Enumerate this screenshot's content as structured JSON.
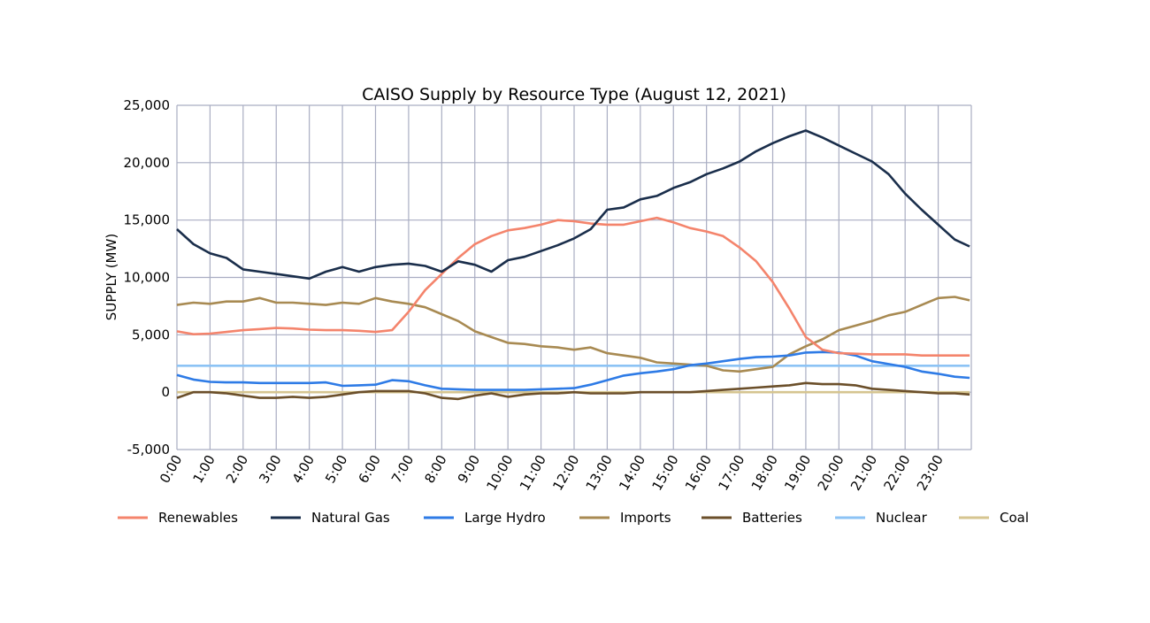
{
  "chart_data": {
    "type": "line",
    "title": "CAISO Supply by Resource Type (August 12, 2021)",
    "xlabel": "",
    "ylabel": "SUPPLY (MW)",
    "ylim": [
      -5000,
      25000
    ],
    "xlim": [
      0,
      24
    ],
    "yticks": [
      -5000,
      0,
      5000,
      10000,
      15000,
      20000,
      25000
    ],
    "ytick_labels": [
      "-5,000",
      "0",
      "5,000",
      "10,000",
      "15,000",
      "20,000",
      "25,000"
    ],
    "xticks": [
      0,
      1,
      2,
      3,
      4,
      5,
      6,
      7,
      8,
      9,
      10,
      11,
      12,
      13,
      14,
      15,
      16,
      17,
      18,
      19,
      20,
      21,
      22,
      23
    ],
    "xtick_labels": [
      "0:00",
      "1:00",
      "2:00",
      "3:00",
      "4:00",
      "5:00",
      "6:00",
      "7:00",
      "8:00",
      "9:00",
      "10:00",
      "11:00",
      "12:00",
      "13:00",
      "14:00",
      "15:00",
      "16:00",
      "17:00",
      "18:00",
      "19:00",
      "20:00",
      "21:00",
      "22:00",
      "23:00"
    ],
    "grid": true,
    "legend_position": "bottom",
    "x": [
      0,
      0.5,
      1,
      1.5,
      2,
      2.5,
      3,
      3.5,
      4,
      4.5,
      5,
      5.5,
      6,
      6.5,
      7,
      7.5,
      8,
      8.5,
      9,
      9.5,
      10,
      10.5,
      11,
      11.5,
      12,
      12.5,
      13,
      13.5,
      14,
      14.5,
      15,
      15.5,
      16,
      16.5,
      17,
      17.5,
      18,
      18.5,
      19,
      19.5,
      20,
      20.5,
      21,
      21.5,
      22,
      22.5,
      23,
      23.5,
      23.95
    ],
    "series": [
      {
        "name": "Renewables",
        "color": "#f4846c",
        "values": [
          5300,
          5050,
          5100,
          5250,
          5400,
          5500,
          5600,
          5550,
          5450,
          5400,
          5400,
          5350,
          5250,
          5400,
          7000,
          8900,
          10300,
          11700,
          12900,
          13600,
          14100,
          14300,
          14600,
          15000,
          14900,
          14700,
          14600,
          14600,
          14900,
          15200,
          14800,
          14300,
          14000,
          13600,
          12600,
          11400,
          9600,
          7300,
          4800,
          3700,
          3400,
          3350,
          3300,
          3300,
          3300,
          3200,
          3200,
          3200,
          3200
        ]
      },
      {
        "name": "Natural Gas",
        "color": "#1a2e4b",
        "values": [
          14200,
          12900,
          12100,
          11700,
          10700,
          10500,
          10300,
          10100,
          9900,
          10500,
          10900,
          10500,
          10900,
          11100,
          11200,
          11000,
          10500,
          11400,
          11100,
          10500,
          11500,
          11800,
          12300,
          12800,
          13400,
          14200,
          15900,
          16100,
          16800,
          17100,
          17800,
          18300,
          19000,
          19500,
          20100,
          21000,
          21700,
          22300,
          22800,
          22200,
          21500,
          20800,
          20100,
          19000,
          17300,
          15900,
          14600,
          13300,
          12700
        ]
      },
      {
        "name": "Large Hydro",
        "color": "#2e7be6",
        "values": [
          1500,
          1100,
          900,
          850,
          850,
          800,
          800,
          800,
          800,
          850,
          550,
          600,
          650,
          1050,
          950,
          600,
          300,
          250,
          200,
          200,
          200,
          200,
          250,
          300,
          350,
          650,
          1050,
          1450,
          1650,
          1800,
          2000,
          2350,
          2500,
          2700,
          2900,
          3050,
          3100,
          3200,
          3450,
          3500,
          3450,
          3200,
          2700,
          2450,
          2200,
          1800,
          1600,
          1350,
          1250
        ]
      },
      {
        "name": "Imports",
        "color": "#a88a52",
        "values": [
          7600,
          7800,
          7700,
          7900,
          7900,
          8200,
          7800,
          7800,
          7700,
          7600,
          7800,
          7700,
          8200,
          7900,
          7700,
          7400,
          6800,
          6200,
          5300,
          4800,
          4300,
          4200,
          4000,
          3900,
          3700,
          3900,
          3400,
          3200,
          3000,
          2600,
          2500,
          2400,
          2300,
          1900,
          1800,
          2000,
          2200,
          3300,
          4000,
          4600,
          5400,
          5800,
          6200,
          6700,
          7000,
          7600,
          8200,
          8300,
          8000
        ]
      },
      {
        "name": "Batteries",
        "color": "#6b4f2a",
        "values": [
          -500,
          0,
          0,
          -100,
          -300,
          -500,
          -500,
          -400,
          -500,
          -400,
          -200,
          0,
          100,
          100,
          100,
          -100,
          -500,
          -600,
          -300,
          -100,
          -400,
          -200,
          -100,
          -100,
          0,
          -100,
          -100,
          -100,
          0,
          0,
          0,
          0,
          100,
          200,
          300,
          400,
          500,
          600,
          800,
          700,
          700,
          600,
          300,
          200,
          100,
          0,
          -100,
          -100,
          -200
        ]
      },
      {
        "name": "Nuclear",
        "color": "#8cc3f5",
        "values": [
          2300,
          2300,
          2300,
          2300,
          2300,
          2300,
          2300,
          2300,
          2300,
          2300,
          2300,
          2300,
          2300,
          2300,
          2300,
          2300,
          2300,
          2300,
          2300,
          2300,
          2300,
          2300,
          2300,
          2300,
          2300,
          2300,
          2300,
          2300,
          2300,
          2300,
          2300,
          2300,
          2300,
          2300,
          2300,
          2300,
          2300,
          2300,
          2300,
          2300,
          2300,
          2300,
          2300,
          2300,
          2300,
          2300,
          2300,
          2300,
          2300
        ]
      },
      {
        "name": "Coal",
        "color": "#d6c590",
        "values": [
          0,
          0,
          0,
          0,
          0,
          0,
          0,
          0,
          0,
          0,
          0,
          0,
          0,
          0,
          0,
          0,
          0,
          0,
          0,
          0,
          0,
          0,
          0,
          0,
          0,
          0,
          0,
          0,
          0,
          0,
          0,
          0,
          0,
          0,
          0,
          0,
          0,
          0,
          0,
          0,
          0,
          0,
          0,
          0,
          0,
          0,
          0,
          0,
          0
        ]
      }
    ]
  }
}
